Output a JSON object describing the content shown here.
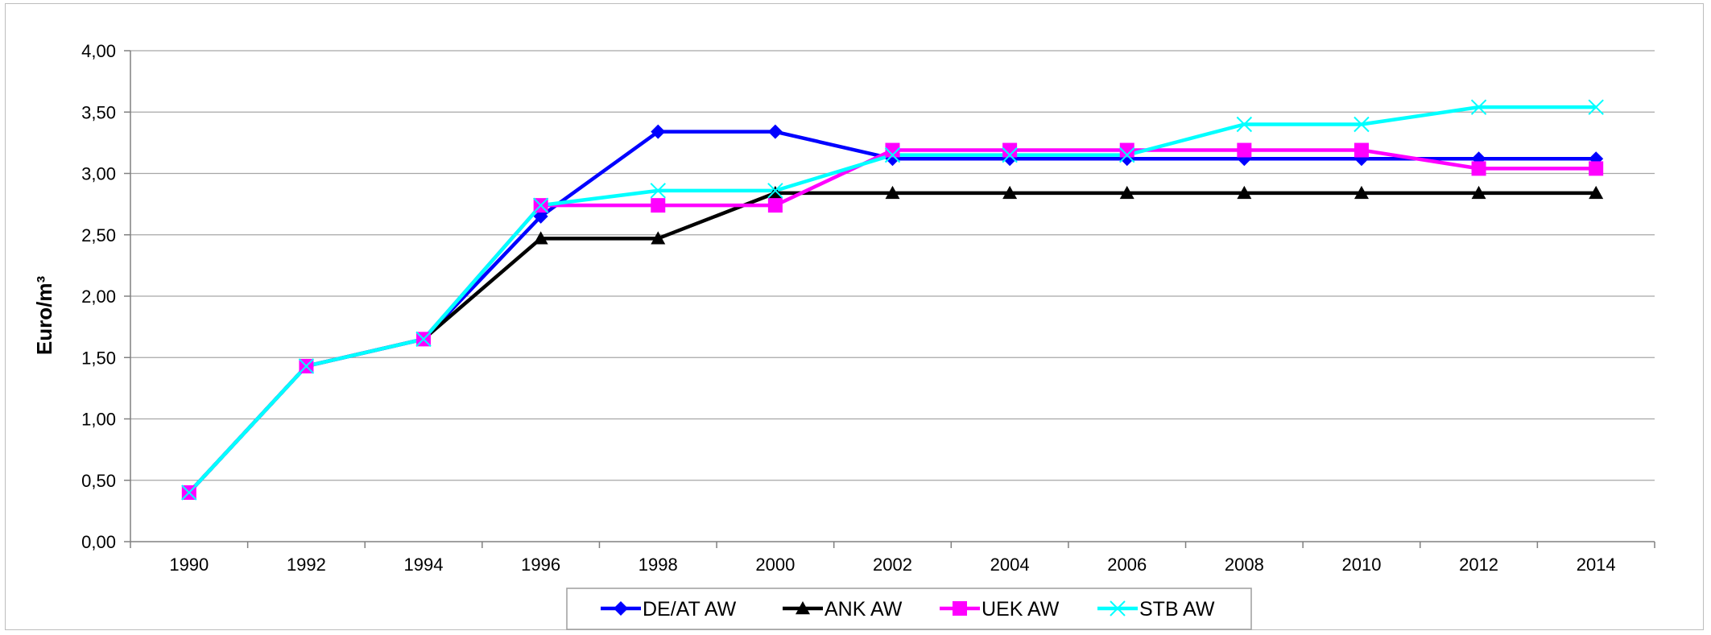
{
  "chart_data": {
    "type": "line",
    "title": "",
    "xlabel": "",
    "ylabel": "Euro/m³",
    "ylim": [
      0,
      4
    ],
    "y_ticks": [
      "0,00",
      "0,50",
      "1,00",
      "1,50",
      "2,00",
      "2,50",
      "3,00",
      "3,50",
      "4,00"
    ],
    "categories": [
      "1990",
      "1992",
      "1994",
      "1996",
      "1998",
      "2000",
      "2002",
      "2004",
      "2006",
      "2008",
      "2010",
      "2012",
      "2014"
    ],
    "grid": true,
    "legend_position": "bottom",
    "series": [
      {
        "name": "DE/AT  AW",
        "color": "#0000ff",
        "marker": "diamond",
        "values": [
          0.4,
          1.43,
          1.65,
          2.65,
          3.34,
          3.34,
          3.12,
          3.12,
          3.12,
          3.12,
          3.12,
          3.12,
          3.12
        ]
      },
      {
        "name": "ANK AW",
        "color": "#000000",
        "marker": "triangle",
        "values": [
          0.4,
          1.43,
          1.65,
          2.47,
          2.47,
          2.84,
          2.84,
          2.84,
          2.84,
          2.84,
          2.84,
          2.84,
          2.84
        ]
      },
      {
        "name": "UEK AW",
        "color": "#ff00ff",
        "marker": "square",
        "values": [
          0.4,
          1.43,
          1.65,
          2.74,
          2.74,
          2.74,
          3.19,
          3.19,
          3.19,
          3.19,
          3.19,
          3.04,
          3.04
        ]
      },
      {
        "name": "STB AW",
        "color": "#00ffff",
        "marker": "x",
        "values": [
          0.4,
          1.43,
          1.65,
          2.74,
          2.86,
          2.86,
          3.15,
          3.15,
          3.15,
          3.4,
          3.4,
          3.54,
          3.54
        ]
      }
    ]
  }
}
